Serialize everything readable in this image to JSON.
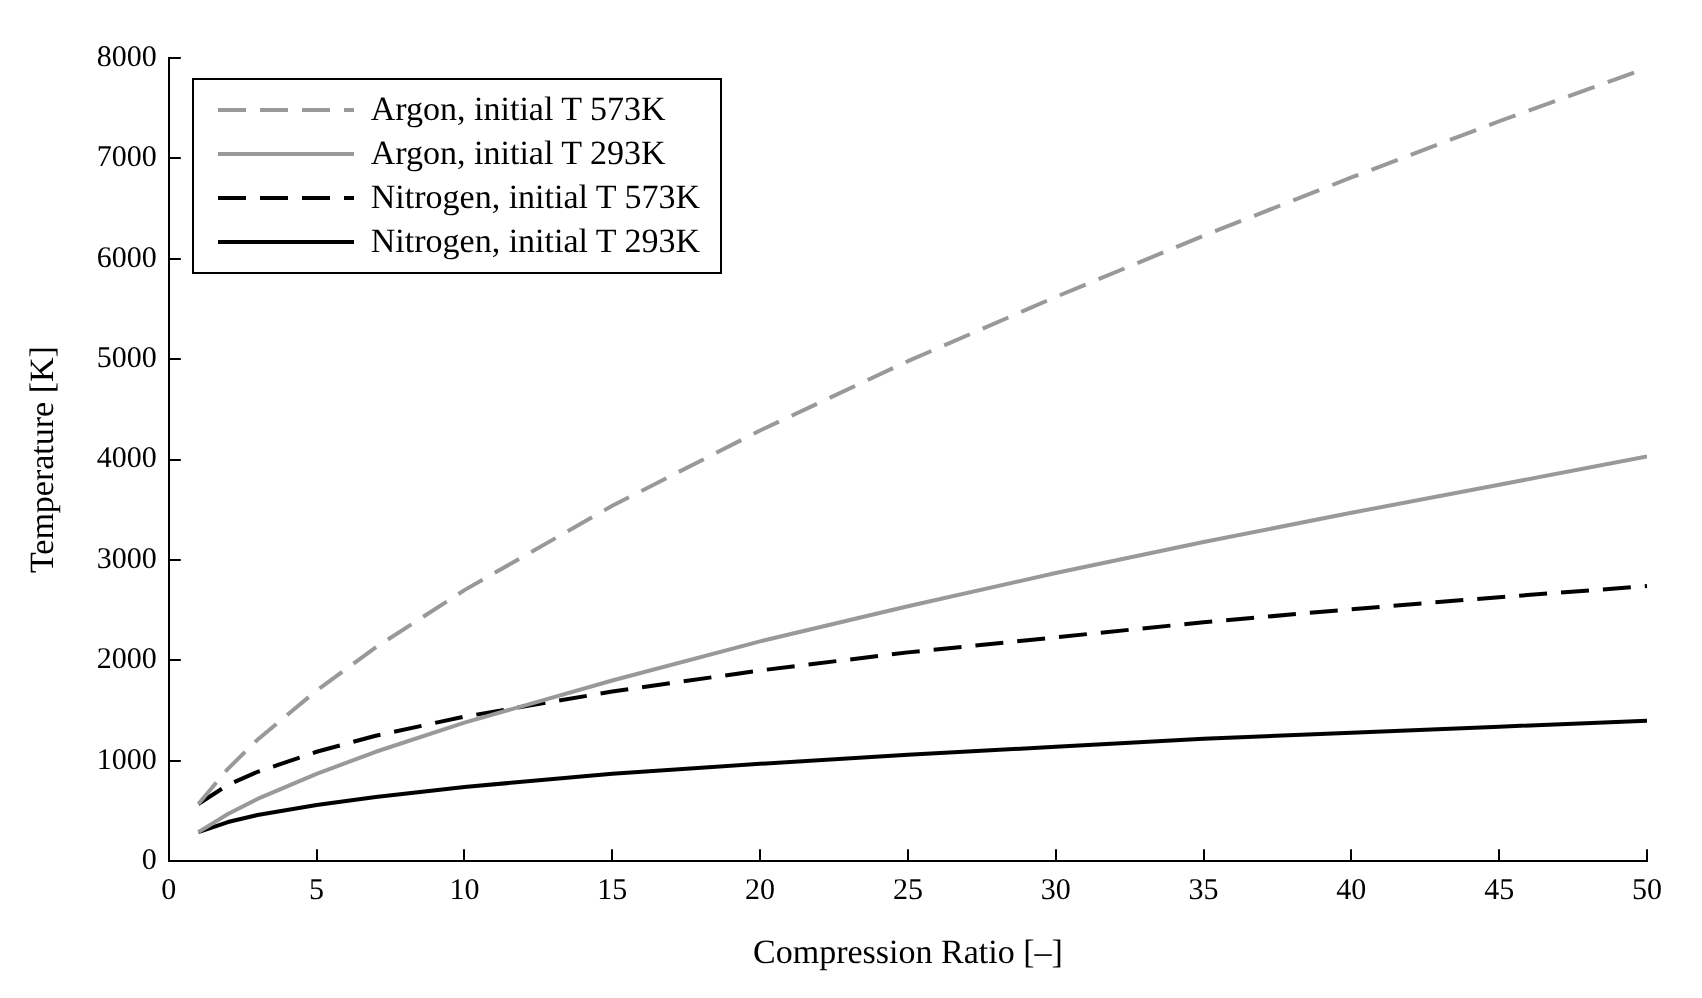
{
  "chart_data": {
    "type": "line",
    "xlabel": "Compression Ratio [–]",
    "ylabel": "Temperature [K]",
    "x": [
      1,
      2,
      3,
      5,
      7,
      10,
      15,
      20,
      25,
      30,
      35,
      40,
      45,
      50
    ],
    "xlim": [
      0,
      50
    ],
    "xticks": [
      0,
      5,
      10,
      15,
      20,
      25,
      30,
      35,
      40,
      45,
      50
    ],
    "ylim": [
      0,
      8000
    ],
    "yticks": [
      0,
      1000,
      2000,
      3000,
      4000,
      5000,
      6000,
      7000,
      8000
    ],
    "grid": false,
    "legend": "top left",
    "marker": "none",
    "series": [
      {
        "name": "Argon, initial T 573K",
        "color": "#999999",
        "line_style": "dashed",
        "values": [
          570,
          920,
          1210,
          1700,
          2130,
          2700,
          3540,
          4290,
          4980,
          5620,
          6230,
          6810,
          7370,
          7900
        ]
      },
      {
        "name": "Argon, initial T 293K",
        "color": "#999999",
        "line_style": "solid",
        "values": [
          290,
          470,
          620,
          870,
          1090,
          1380,
          1800,
          2190,
          2540,
          2870,
          3180,
          3470,
          3750,
          4030
        ]
      },
      {
        "name": "Nitrogen, initial T 573K",
        "color": "#000000",
        "line_style": "dashed",
        "values": [
          570,
          760,
          890,
          1090,
          1250,
          1440,
          1690,
          1900,
          2080,
          2230,
          2380,
          2510,
          2630,
          2740
        ]
      },
      {
        "name": "Nitrogen, initial T 293K",
        "color": "#000000",
        "line_style": "solid",
        "values": [
          290,
          390,
          460,
          560,
          640,
          740,
          870,
          970,
          1060,
          1140,
          1220,
          1280,
          1340,
          1400
        ]
      }
    ]
  }
}
